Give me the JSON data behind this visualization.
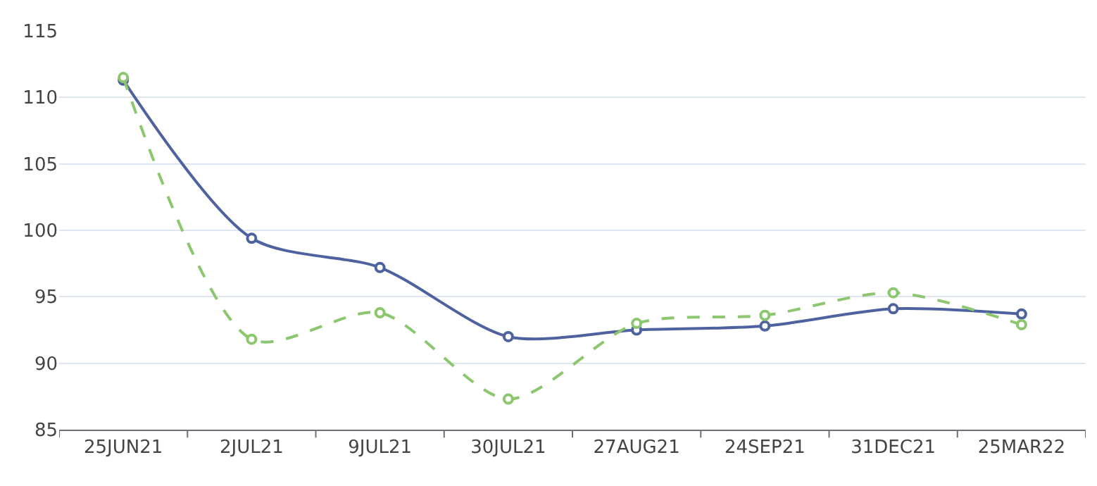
{
  "chart_data": {
    "type": "line",
    "categories": [
      "25JUN21",
      "2JUL21",
      "9JUL21",
      "30JUL21",
      "27AUG21",
      "24SEP21",
      "31DEC21",
      "25MAR22"
    ],
    "series": [
      {
        "color": "#4e62a0",
        "values": [
          111.3,
          99.4,
          97.2,
          92.0,
          92.5,
          92.8,
          94.1,
          93.7
        ],
        "line_style": "solid"
      },
      {
        "color": "#8cc66e",
        "values": [
          111.5,
          91.8,
          93.8,
          87.3,
          93.0,
          93.6,
          95.3,
          92.9
        ],
        "line_style": "dashed"
      }
    ],
    "ylim": [
      85,
      115
    ],
    "yticks": [
      85,
      90,
      95,
      100,
      105,
      110,
      115
    ],
    "grid": "y",
    "legend": false,
    "marker": "circle"
  }
}
